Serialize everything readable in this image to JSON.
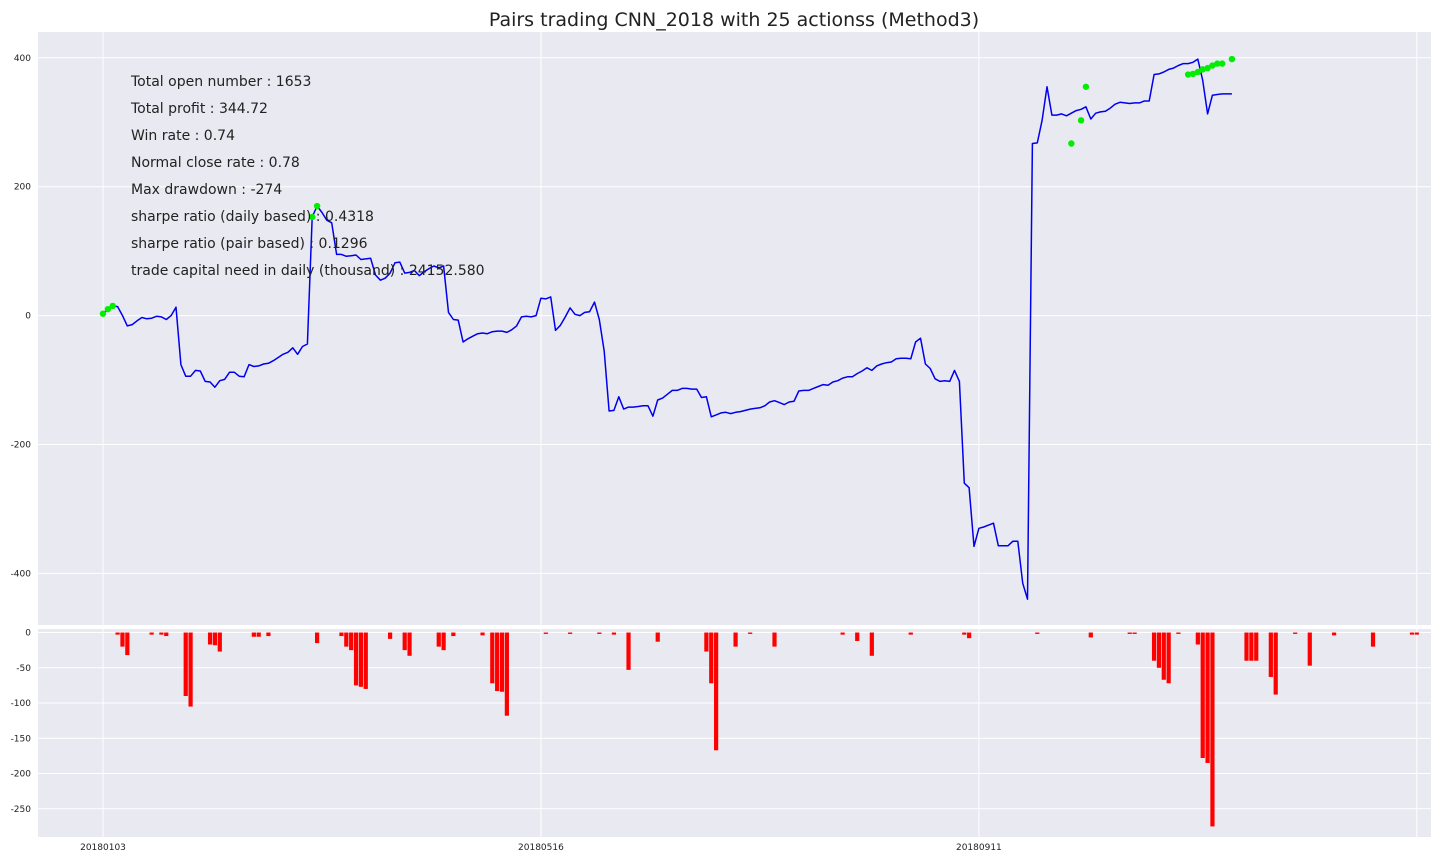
{
  "chart_data": [
    {
      "type": "line",
      "title": "Pairs trading CNN_2018 with 25 actionss (Method3)",
      "xlabel": "",
      "ylabel": "",
      "ylim": [
        -480,
        440
      ],
      "yticks": [
        400,
        200,
        0,
        -200,
        -400
      ],
      "xtick_labels": [
        "20180103",
        "20180516",
        "20180911"
      ],
      "xtick_index": [
        0,
        90,
        180
      ],
      "grid": true,
      "series": [
        {
          "color": "#0000ee",
          "values": [
            3,
            10,
            15,
            14,
            0,
            -16,
            -14,
            -8,
            -3,
            -5,
            -4,
            -1,
            -2,
            -6,
            0,
            13,
            -76,
            -94,
            -94,
            -85,
            -86,
            -102,
            -103,
            -111,
            -101,
            -99,
            -88,
            -88,
            -94,
            -95,
            -76,
            -79,
            -78,
            -75,
            -74,
            -70,
            -65,
            -60,
            -57,
            -50,
            -60,
            -48,
            -44,
            153,
            170,
            160,
            148,
            144,
            95,
            95,
            92,
            93,
            94,
            87,
            88,
            89,
            63,
            55,
            58,
            66,
            82,
            83,
            66,
            67,
            70,
            62,
            68,
            73,
            77,
            74,
            77,
            5,
            -6,
            -7,
            -41,
            -36,
            -32,
            -28,
            -27,
            -28,
            -25,
            -24,
            -24,
            -26,
            -22,
            -16,
            -2,
            -1,
            -2,
            0,
            27,
            26,
            29,
            -23,
            -15,
            -2,
            12,
            2,
            0,
            5,
            6,
            21,
            -6,
            -55,
            -148,
            -147,
            -126,
            -145,
            -142,
            -142,
            -141,
            -140,
            -140,
            -156,
            -131,
            -128,
            -122,
            -116,
            -116,
            -113,
            -113,
            -114,
            -114,
            -127,
            -126,
            -157,
            -154,
            -151,
            -150,
            -152,
            -150,
            -149,
            -147,
            -145,
            -144,
            -143,
            -140,
            -134,
            -132,
            -135,
            -138,
            -134,
            -133,
            -117,
            -116,
            -116,
            -113,
            -110,
            -107,
            -108,
            -103,
            -101,
            -97,
            -95,
            -95,
            -90,
            -86,
            -81,
            -85,
            -78,
            -75,
            -73,
            -72,
            -67,
            -66,
            -66,
            -67,
            -41,
            -35,
            -75,
            -82,
            -98,
            -102,
            -101,
            -102,
            -85,
            -102,
            -260,
            -267,
            -358,
            -330,
            -328,
            -325,
            -322,
            -357,
            -357,
            -357,
            -350,
            -350,
            -415,
            -440,
            267,
            268,
            303,
            355,
            311,
            311,
            313,
            310,
            314,
            318,
            320,
            324,
            305,
            314,
            316,
            317,
            322,
            328,
            331,
            330,
            329,
            330,
            330,
            333,
            333,
            374,
            375,
            378,
            382,
            384,
            388,
            391,
            391,
            393,
            398,
            365,
            313,
            342,
            343,
            344,
            344,
            344
          ]
        }
      ],
      "markers": {
        "color": "#00ee00",
        "points": [
          {
            "i": 0,
            "y": 3
          },
          {
            "i": 1,
            "y": 10
          },
          {
            "i": 2,
            "y": 15
          },
          {
            "i": 43,
            "y": 153
          },
          {
            "i": 44,
            "y": 170
          },
          {
            "i": 199,
            "y": 267
          },
          {
            "i": 201,
            "y": 303
          },
          {
            "i": 202,
            "y": 355
          },
          {
            "i": 223,
            "y": 374
          },
          {
            "i": 224,
            "y": 375
          },
          {
            "i": 225,
            "y": 378
          },
          {
            "i": 226,
            "y": 382
          },
          {
            "i": 227,
            "y": 384
          },
          {
            "i": 228,
            "y": 388
          },
          {
            "i": 229,
            "y": 391
          },
          {
            "i": 230,
            "y": 391
          },
          {
            "i": 232,
            "y": 398
          }
        ]
      },
      "annotations": [
        "Total open number : 1653",
        "Total profit : 344.72",
        "Win rate : 0.74",
        "Normal close rate : 0.78",
        "Max drawdown : -274",
        "sharpe ratio (daily based) : 0.4318",
        "sharpe ratio (pair based) : 0.1296",
        "trade capital need in daily (thousand) : 24152.580"
      ]
    },
    {
      "type": "bar",
      "title": "",
      "ylim": [
        -290,
        5
      ],
      "yticks": [
        0,
        -50,
        -100,
        -150,
        -200,
        -250
      ],
      "color": "#ff0000",
      "values": [
        0,
        0,
        0,
        -3,
        -20,
        -32,
        0,
        0,
        0,
        0,
        -3,
        0,
        -3,
        -5,
        0,
        0,
        0,
        -90,
        -105,
        0,
        0,
        0,
        -17,
        -18,
        -27,
        0,
        0,
        0,
        0,
        0,
        0,
        -6,
        -6,
        0,
        -5,
        0,
        0,
        0,
        0,
        0,
        0,
        0,
        0,
        0,
        -15,
        0,
        0,
        0,
        0,
        -5,
        -20,
        -25,
        -75,
        -77,
        -80,
        0,
        0,
        0,
        0,
        -9,
        0,
        0,
        -25,
        -33,
        0,
        0,
        0,
        0,
        0,
        -20,
        -25,
        0,
        -5,
        0,
        0,
        0,
        0,
        0,
        -4,
        0,
        -72,
        -83,
        -84,
        -118,
        0,
        0,
        0,
        0,
        0,
        0,
        0,
        -2,
        0,
        0,
        0,
        0,
        -2,
        0,
        0,
        0,
        0,
        0,
        -2,
        0,
        0,
        -3,
        0,
        0,
        -53,
        0,
        0,
        0,
        0,
        0,
        -13,
        0,
        0,
        0,
        0,
        0,
        0,
        0,
        0,
        0,
        -27,
        -72,
        -167,
        0,
        0,
        0,
        -20,
        0,
        0,
        -2,
        0,
        0,
        0,
        0,
        -20,
        0,
        0,
        0,
        0,
        0,
        0,
        0,
        0,
        0,
        0,
        0,
        0,
        0,
        -3,
        0,
        0,
        -12,
        0,
        0,
        -33,
        0,
        0,
        0,
        0,
        0,
        0,
        0,
        -3,
        0,
        0,
        0,
        0,
        0,
        0,
        0,
        0,
        0,
        0,
        -3,
        -8,
        0,
        0,
        0,
        0,
        0,
        0,
        0,
        0,
        0,
        0,
        0,
        0,
        0,
        -2,
        0,
        0,
        0,
        0,
        0,
        0,
        0,
        0,
        0,
        0,
        -7,
        0,
        0,
        0,
        0,
        0,
        0,
        0,
        -2,
        -2,
        0,
        0,
        0,
        -40,
        -50,
        -67,
        -72,
        0,
        -2,
        0,
        0,
        0,
        -17,
        -178,
        -185,
        -275,
        0,
        0,
        0,
        0,
        0,
        0,
        -40,
        -40,
        -40,
        0,
        0,
        -63,
        -88,
        0,
        0,
        0,
        -2,
        0,
        0,
        -47,
        0,
        0,
        0,
        0,
        -4,
        0,
        0,
        0,
        0,
        0,
        0,
        0,
        -20,
        0,
        0,
        0,
        0,
        0,
        0,
        0,
        -3,
        -3,
        0,
        0,
        0,
        0,
        0,
        0,
        0,
        0,
        0,
        0,
        0,
        0,
        0,
        0,
        -2,
        -32,
        -86,
        0,
        0,
        -2
      ]
    }
  ]
}
